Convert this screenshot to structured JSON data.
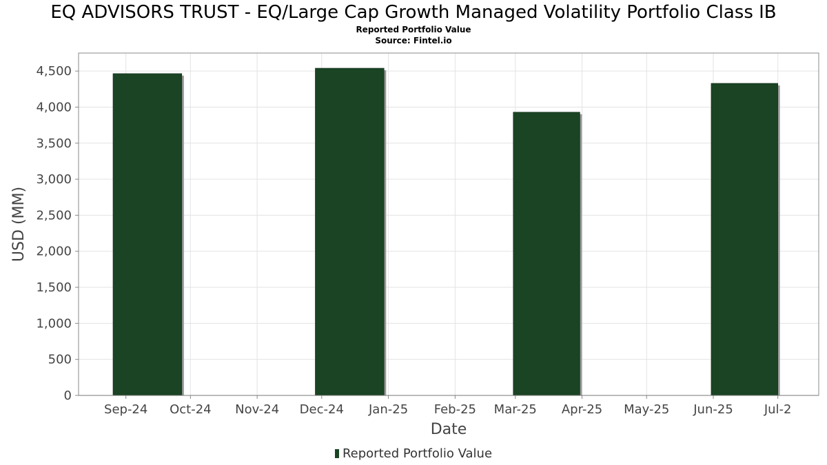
{
  "chart_data": {
    "type": "bar",
    "title": "EQ ADVISORS TRUST - EQ/Large Cap Growth Managed Volatility Portfolio Class IB",
    "subtitle": "Reported Portfolio Value",
    "source": "Source: Fintel.io",
    "xlabel": "Date",
    "ylabel": "USD (MM)",
    "ylim": [
      0,
      4750
    ],
    "yticks": [
      0,
      500,
      1000,
      1500,
      2000,
      2500,
      3000,
      3500,
      4000,
      4500
    ],
    "ytick_labels": [
      "0",
      "500",
      "1,000",
      "1,500",
      "2,000",
      "2,500",
      "3,000",
      "3,500",
      "4,000",
      "4,500"
    ],
    "xlim": [
      "2024-08-10",
      "2025-07-20"
    ],
    "xticks": [
      "2024-09-01",
      "2024-10-01",
      "2024-11-01",
      "2024-12-01",
      "2025-01-01",
      "2025-02-01",
      "2025-03-01",
      "2025-04-01",
      "2025-05-01",
      "2025-06-01",
      "2025-07-01"
    ],
    "xtick_labels": [
      "Sep-24",
      "Oct-24",
      "Nov-24",
      "Dec-24",
      "Jan-25",
      "Feb-25",
      "Mar-25",
      "Apr-25",
      "May-25",
      "Jun-25",
      "Jul-2"
    ],
    "grid": true,
    "legend_position": "bottom-center",
    "series": [
      {
        "name": "Reported Portfolio Value",
        "color": "#1a4423",
        "bars": [
          {
            "start": "2024-08-26",
            "end": "2024-09-27",
            "value": 4465
          },
          {
            "start": "2024-11-28",
            "end": "2024-12-30",
            "value": 4540
          },
          {
            "start": "2025-02-28",
            "end": "2025-03-31",
            "value": 3930
          },
          {
            "start": "2025-05-31",
            "end": "2025-07-01",
            "value": 4330
          }
        ]
      }
    ]
  }
}
